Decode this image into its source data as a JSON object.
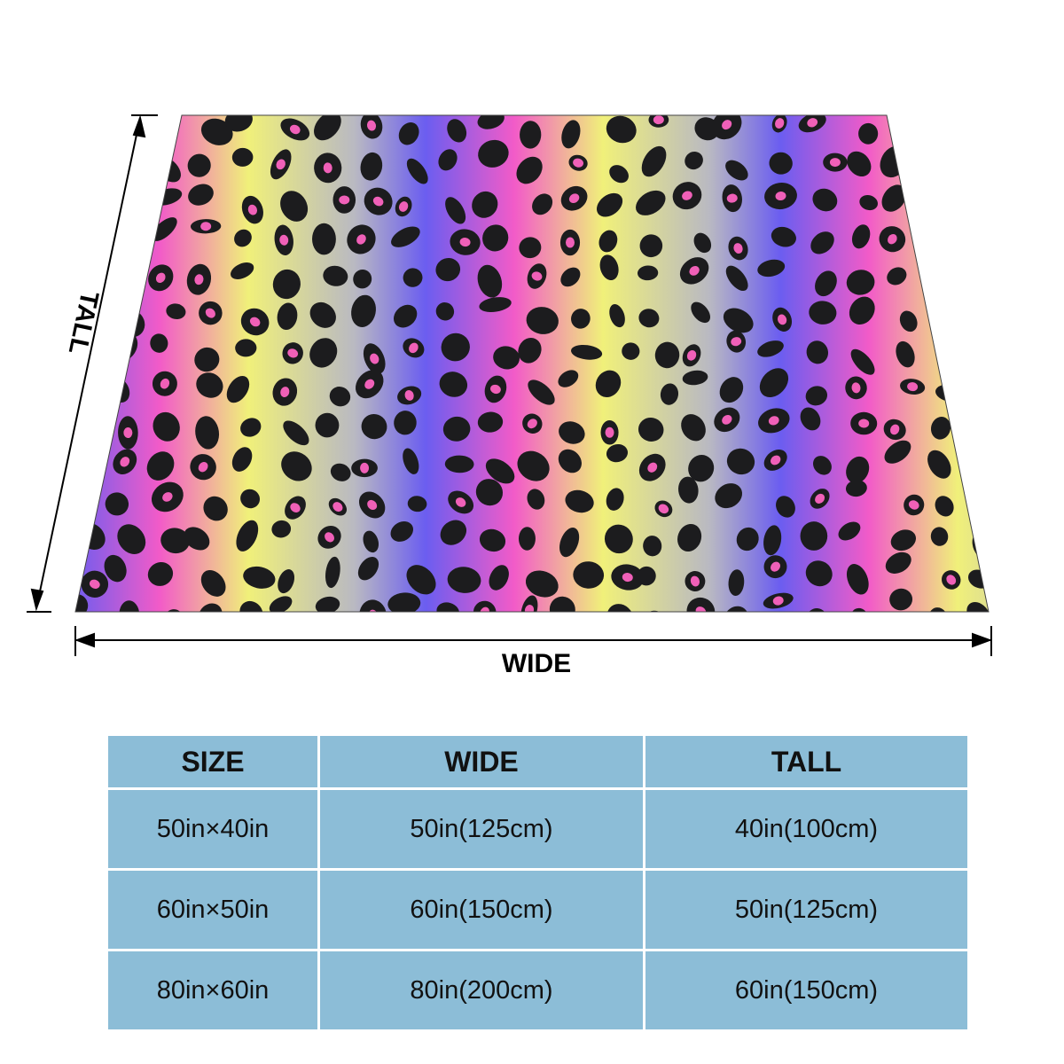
{
  "dimensions": {
    "tall": "TALL",
    "wide": "WIDE"
  },
  "table": {
    "header": [
      "SIZE",
      "WIDE",
      "TALL"
    ],
    "rows": [
      [
        "50in×40in",
        "50in(125cm)",
        "40in(100cm)"
      ],
      [
        "60in×50in",
        "60in(150cm)",
        "50in(125cm)"
      ],
      [
        "80in×60in",
        "80in(200cm)",
        "60in(150cm)"
      ]
    ]
  }
}
